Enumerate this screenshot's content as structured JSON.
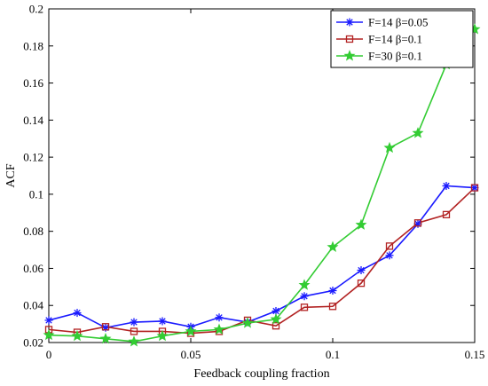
{
  "chart_data": {
    "type": "line",
    "xlabel": "Feedback coupling fraction",
    "ylabel": "ACF",
    "xlim": [
      0,
      0.15
    ],
    "ylim": [
      0.02,
      0.2
    ],
    "xticks": [
      0,
      0.05,
      0.1,
      0.15
    ],
    "xtick_labels": [
      "0",
      "0.05",
      "0.1",
      "0.15"
    ],
    "yticks": [
      0.02,
      0.04,
      0.06,
      0.08,
      0.1,
      0.12,
      0.14,
      0.16,
      0.18,
      0.2
    ],
    "ytick_labels": [
      "0.02",
      "0.04",
      "0.06",
      "0.08",
      "0.1",
      "0.12",
      "0.14",
      "0.16",
      "0.18",
      "0.2"
    ],
    "grid": false,
    "legend_position": "top-right",
    "x": [
      0,
      0.01,
      0.02,
      0.03,
      0.04,
      0.05,
      0.06,
      0.07,
      0.08,
      0.09,
      0.1,
      0.11,
      0.12,
      0.13,
      0.14,
      0.15
    ],
    "series": [
      {
        "name": "F=14 β=0.05",
        "color": "#1a1aff",
        "marker": "asterisk",
        "values": [
          0.032,
          0.036,
          0.028,
          0.031,
          0.0315,
          0.0285,
          0.0335,
          0.031,
          0.037,
          0.045,
          0.048,
          0.059,
          0.067,
          0.084,
          0.1045,
          0.1035
        ]
      },
      {
        "name": "F=14 β=0.1",
        "color": "#b22222",
        "marker": "square",
        "values": [
          0.027,
          0.0255,
          0.0285,
          0.026,
          0.026,
          0.025,
          0.026,
          0.032,
          0.029,
          0.039,
          0.0395,
          0.052,
          0.072,
          0.0845,
          0.089,
          0.1035
        ]
      },
      {
        "name": "F=30 β=0.1",
        "color": "#33cc33",
        "marker": "star",
        "values": [
          0.024,
          0.0235,
          0.022,
          0.0205,
          0.0235,
          0.026,
          0.027,
          0.0305,
          0.0325,
          0.051,
          0.0715,
          0.0835,
          0.125,
          0.133,
          0.17,
          0.189
        ]
      }
    ]
  }
}
